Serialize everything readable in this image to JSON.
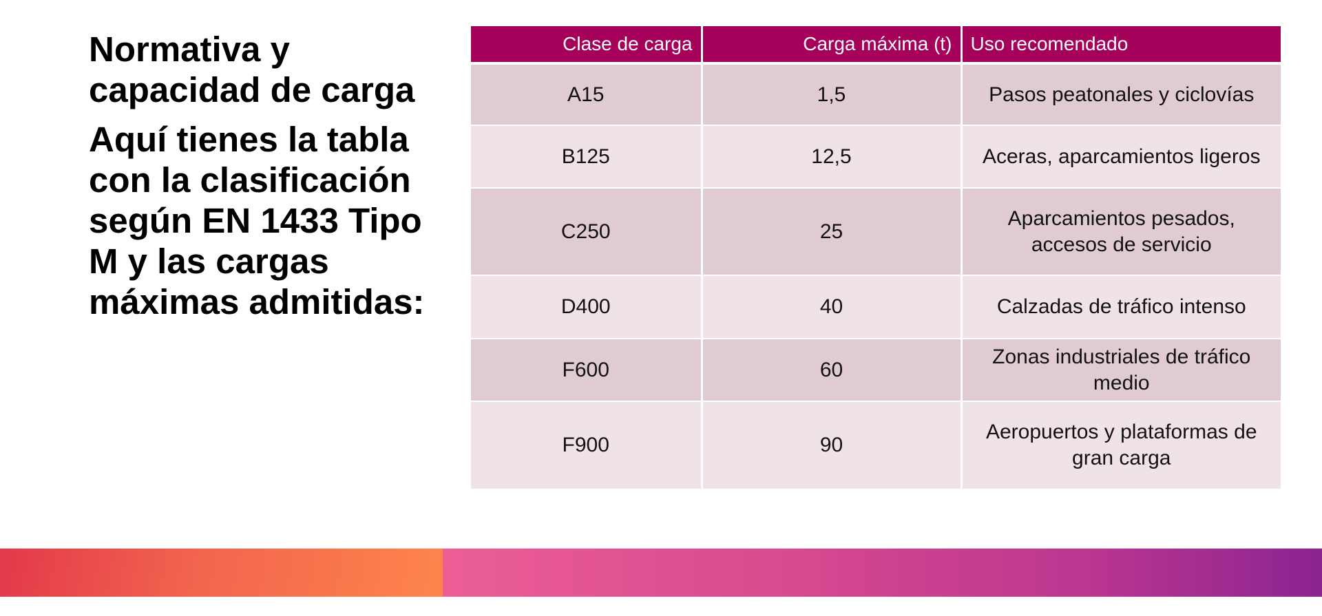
{
  "slide": {
    "title": "Normativa y capacidad de carga",
    "subtitle": "Aquí tienes la tabla con la clasificación según EN 1433 Tipo M y las cargas máximas admitidas:"
  },
  "table": {
    "headers": [
      "Clase de carga",
      "Carga máxima (t)",
      "Uso recomendado"
    ],
    "rows": [
      [
        "A15",
        "1,5",
        "Pasos peatonales y ciclovías"
      ],
      [
        "B125",
        "12,5",
        "Aceras, aparcamientos ligeros"
      ],
      [
        "C250",
        "25",
        "Aparcamientos pesados, accesos de servicio"
      ],
      [
        "D400",
        "40",
        "Calzadas de tráfico intenso"
      ],
      [
        "F600",
        "60",
        "Zonas industriales de tráfico medio"
      ],
      [
        "F900",
        "90",
        "Aeropuertos y plataformas de gran carga"
      ]
    ]
  },
  "colors": {
    "header": "#a5005a",
    "row_dark": "#e0cbd4",
    "row_light": "#efe3e8",
    "bar_left_start": "#e3394a",
    "bar_left_end": "#fe844b",
    "bar_right_start": "#ec5e95",
    "bar_right_end": "#8b2491"
  }
}
